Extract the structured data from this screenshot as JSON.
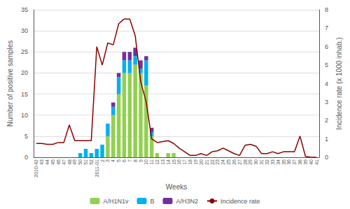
{
  "chart_data": {
    "type": "bar",
    "stacked": true,
    "categories": [
      "2010-42",
      "43",
      "44",
      "45",
      "46",
      "47",
      "48",
      "49",
      "50",
      "51",
      "52",
      "2011-01",
      "2",
      "3",
      "4",
      "5",
      "6",
      "7",
      "8",
      "9",
      "10",
      "11",
      "12",
      "13",
      "14",
      "15",
      "16",
      "17",
      "18",
      "19",
      "20",
      "21",
      "22",
      "23",
      "24",
      "25",
      "26",
      "27",
      "28",
      "29",
      "30",
      "31",
      "32",
      "33",
      "34",
      "35",
      "36",
      "37",
      "38",
      "39",
      "40",
      "41"
    ],
    "series": [
      {
        "name": "A/H1N1v",
        "type": "bar",
        "color": "#92d050",
        "values": [
          0,
          0,
          0,
          0,
          0,
          0,
          0,
          0,
          0,
          0,
          0,
          0,
          0,
          5,
          10,
          15,
          20,
          20,
          22,
          20,
          17,
          5,
          1,
          0,
          1,
          1,
          0,
          0,
          0,
          0,
          0,
          0,
          0,
          0,
          0,
          0,
          0,
          0,
          0,
          0,
          0,
          0,
          0,
          0,
          0,
          0,
          0,
          0,
          0,
          0,
          0,
          0
        ]
      },
      {
        "name": "B",
        "type": "bar",
        "color": "#00b0f0",
        "values": [
          0,
          0,
          0,
          0,
          0,
          0,
          0,
          0,
          1,
          2,
          1,
          2,
          3,
          3,
          2,
          4,
          3,
          3,
          2,
          1,
          6,
          1,
          0,
          0,
          0,
          0,
          0,
          0,
          0,
          0,
          0,
          0,
          0,
          0,
          0,
          0,
          0,
          0,
          0,
          0,
          0,
          0,
          0,
          0,
          0,
          0,
          0,
          0,
          0,
          0,
          0,
          0
        ]
      },
      {
        "name": "A/H3N2",
        "type": "bar",
        "color": "#7030a0",
        "values": [
          0,
          0,
          0,
          0,
          0,
          0,
          0,
          0,
          0,
          0,
          0,
          0,
          0,
          0,
          1,
          1,
          2,
          2,
          2,
          2,
          1,
          1,
          0,
          0,
          0,
          0,
          0,
          0,
          0,
          0,
          0,
          0,
          0,
          0,
          0,
          0,
          0,
          0,
          0,
          0,
          0,
          0,
          0,
          0,
          0,
          0,
          0,
          0,
          0,
          0,
          0,
          0
        ]
      },
      {
        "name": "Incidence rate",
        "type": "line",
        "axis": "y2",
        "color": "#8b0000",
        "values": [
          0.75,
          0.75,
          0.7,
          0.7,
          0.8,
          0.8,
          1.75,
          0.9,
          0.9,
          0.9,
          0.9,
          6.0,
          5.0,
          6.2,
          6.1,
          7.25,
          7.5,
          7.5,
          6.6,
          4.1,
          3.0,
          1.0,
          0.8,
          0.85,
          0.9,
          0.75,
          0.5,
          0.3,
          0.1,
          0.1,
          0.2,
          0.1,
          0.3,
          0.35,
          0.5,
          0.35,
          0.2,
          0.1,
          0.65,
          0.7,
          0.6,
          0.2,
          0.2,
          0.3,
          0.2,
          0.3,
          0.3,
          0.3,
          1.15,
          0.05,
          0,
          0
        ]
      }
    ],
    "xlabel": "Weeks",
    "ylabel": "Number of positive samples",
    "y2label": "Incidence rate (x 1000 inhab.)",
    "ylim": [
      0,
      35
    ],
    "yticks": [
      0,
      5,
      10,
      15,
      20,
      25,
      30,
      35
    ],
    "y2lim": [
      0,
      8
    ],
    "y2ticks": [
      0,
      1,
      2,
      3,
      4,
      5,
      6,
      7,
      8
    ],
    "grid": true,
    "legend": "bottom"
  }
}
